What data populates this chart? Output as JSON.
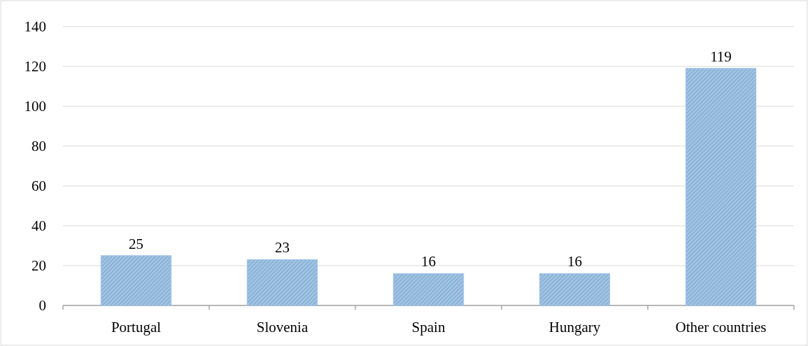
{
  "chart_data": {
    "type": "bar",
    "categories": [
      "Portugal",
      "Slovenia",
      "Spain",
      "Hungary",
      "Other countries"
    ],
    "values": [
      25,
      23,
      16,
      16,
      119
    ],
    "color": "#9dc3e6",
    "ylim": [
      0,
      140
    ],
    "yticks": [
      0,
      20,
      40,
      60,
      80,
      100,
      120,
      140
    ],
    "grid": "y",
    "data_labels": true
  }
}
